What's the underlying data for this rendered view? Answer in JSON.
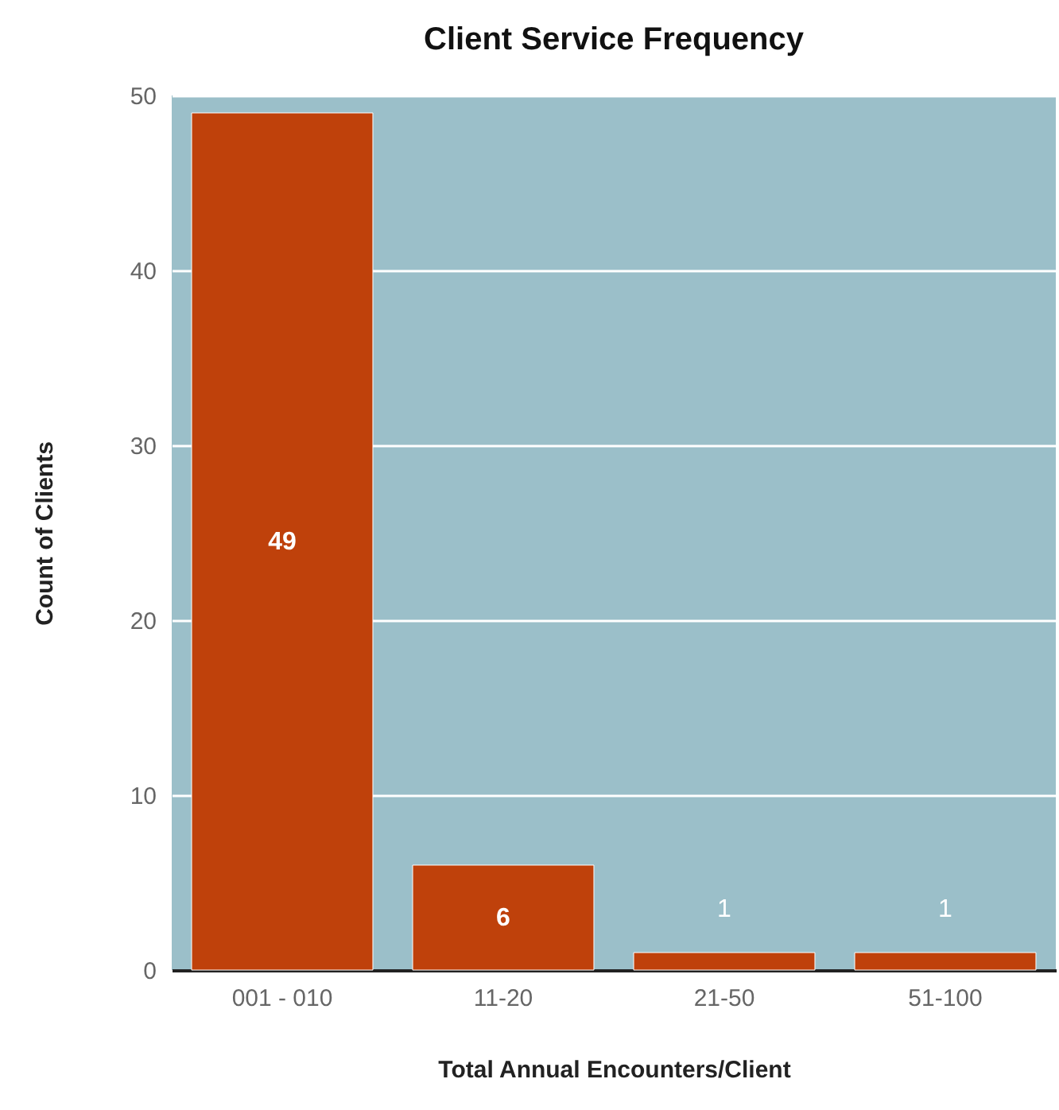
{
  "chart_data": {
    "type": "bar",
    "title": "Client Service Frequency",
    "xlabel": "Total Annual Encounters/Client",
    "ylabel": "Count of Clients",
    "categories": [
      "001 - 010",
      "11-20",
      "21-50",
      "51-100"
    ],
    "values": [
      49,
      6,
      1,
      1
    ],
    "color": "#bf410b",
    "ylim": [
      0,
      50
    ],
    "yticks": [
      0,
      10,
      20,
      30,
      40,
      50
    ],
    "grid": "y",
    "data_labels": true
  }
}
